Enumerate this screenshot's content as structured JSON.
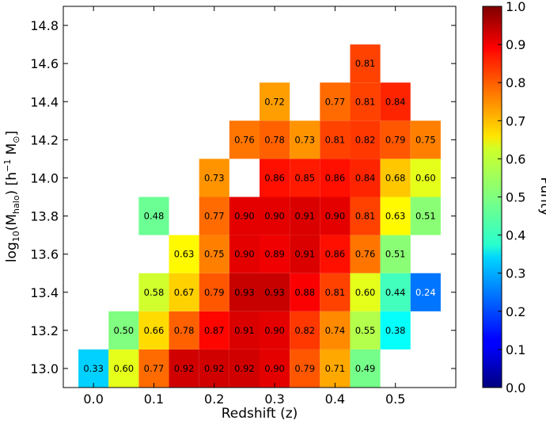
{
  "chart_data": {
    "type": "heatmap",
    "xlabel": "Redshift (z)",
    "ylabel_main": "log",
    "ylabel_sub": "10",
    "ylabel_paren_open": "(M",
    "ylabel_halo": "halo",
    "ylabel_paren_close": ")",
    "ylabel_units_open": " [h",
    "ylabel_exp": "−1",
    "ylabel_msun": " M",
    "ylabel_sun_sub": "⊙",
    "ylabel_units_close": "]",
    "colorbar_label": "Purity",
    "xlim": [
      -0.05,
      0.6
    ],
    "ylim": [
      12.9,
      14.9
    ],
    "x_ticks": [
      "0.0",
      "0.1",
      "0.2",
      "0.3",
      "0.4",
      "0.5"
    ],
    "y_ticks": [
      "13.0",
      "13.2",
      "13.4",
      "13.6",
      "13.8",
      "14.0",
      "14.2",
      "14.4",
      "14.6",
      "14.8"
    ],
    "colorbar_ticks": [
      "0.0",
      "0.1",
      "0.2",
      "0.3",
      "0.4",
      "0.5",
      "0.6",
      "0.7",
      "0.8",
      "0.9",
      "1.0"
    ],
    "colorbar_range": [
      0.0,
      1.0
    ],
    "colormap": "jet",
    "x_bin_centers": [
      0.0,
      0.05,
      0.1,
      0.15,
      0.2,
      0.25,
      0.3,
      0.35,
      0.4,
      0.45,
      0.5,
      0.55
    ],
    "y_bin_centers": [
      13.0,
      13.2,
      13.4,
      13.6,
      13.8,
      14.0,
      14.2,
      14.4,
      14.6
    ],
    "cells": [
      {
        "x": 0.0,
        "y": 13.0,
        "value": 0.33,
        "label": "0.33"
      },
      {
        "x": 0.05,
        "y": 13.0,
        "value": 0.6,
        "label": "0.60"
      },
      {
        "x": 0.1,
        "y": 13.0,
        "value": 0.77,
        "label": "0.77"
      },
      {
        "x": 0.15,
        "y": 13.0,
        "value": 0.92,
        "label": "0.92"
      },
      {
        "x": 0.2,
        "y": 13.0,
        "value": 0.92,
        "label": "0.92"
      },
      {
        "x": 0.25,
        "y": 13.0,
        "value": 0.92,
        "label": "0.92"
      },
      {
        "x": 0.3,
        "y": 13.0,
        "value": 0.9,
        "label": "0.90"
      },
      {
        "x": 0.35,
        "y": 13.0,
        "value": 0.79,
        "label": "0.79"
      },
      {
        "x": 0.4,
        "y": 13.0,
        "value": 0.71,
        "label": "0.71"
      },
      {
        "x": 0.45,
        "y": 13.0,
        "value": 0.49,
        "label": "0.49"
      },
      {
        "x": 0.05,
        "y": 13.2,
        "value": 0.5,
        "label": "0.50"
      },
      {
        "x": 0.1,
        "y": 13.2,
        "value": 0.66,
        "label": "0.66"
      },
      {
        "x": 0.15,
        "y": 13.2,
        "value": 0.78,
        "label": "0.78"
      },
      {
        "x": 0.2,
        "y": 13.2,
        "value": 0.87,
        "label": "0.87"
      },
      {
        "x": 0.25,
        "y": 13.2,
        "value": 0.91,
        "label": "0.91"
      },
      {
        "x": 0.3,
        "y": 13.2,
        "value": 0.9,
        "label": "0.90"
      },
      {
        "x": 0.35,
        "y": 13.2,
        "value": 0.82,
        "label": "0.82"
      },
      {
        "x": 0.4,
        "y": 13.2,
        "value": 0.74,
        "label": "0.74"
      },
      {
        "x": 0.45,
        "y": 13.2,
        "value": 0.55,
        "label": "0.55"
      },
      {
        "x": 0.5,
        "y": 13.2,
        "value": 0.38,
        "label": "0.38"
      },
      {
        "x": 0.1,
        "y": 13.4,
        "value": 0.58,
        "label": "0.58"
      },
      {
        "x": 0.15,
        "y": 13.4,
        "value": 0.67,
        "label": "0.67"
      },
      {
        "x": 0.2,
        "y": 13.4,
        "value": 0.79,
        "label": "0.79"
      },
      {
        "x": 0.25,
        "y": 13.4,
        "value": 0.93,
        "label": "0.93"
      },
      {
        "x": 0.3,
        "y": 13.4,
        "value": 0.93,
        "label": "0.93"
      },
      {
        "x": 0.35,
        "y": 13.4,
        "value": 0.88,
        "label": "0.88"
      },
      {
        "x": 0.4,
        "y": 13.4,
        "value": 0.81,
        "label": "0.81"
      },
      {
        "x": 0.45,
        "y": 13.4,
        "value": 0.6,
        "label": "0.60"
      },
      {
        "x": 0.5,
        "y": 13.4,
        "value": 0.44,
        "label": "0.44"
      },
      {
        "x": 0.55,
        "y": 13.4,
        "value": 0.24,
        "label": "0.24"
      },
      {
        "x": 0.15,
        "y": 13.6,
        "value": 0.63,
        "label": "0.63"
      },
      {
        "x": 0.2,
        "y": 13.6,
        "value": 0.75,
        "label": "0.75"
      },
      {
        "x": 0.25,
        "y": 13.6,
        "value": 0.9,
        "label": "0.90"
      },
      {
        "x": 0.3,
        "y": 13.6,
        "value": 0.89,
        "label": "0.89"
      },
      {
        "x": 0.35,
        "y": 13.6,
        "value": 0.91,
        "label": "0.91"
      },
      {
        "x": 0.4,
        "y": 13.6,
        "value": 0.86,
        "label": "0.86"
      },
      {
        "x": 0.45,
        "y": 13.6,
        "value": 0.76,
        "label": "0.76"
      },
      {
        "x": 0.5,
        "y": 13.6,
        "value": 0.51,
        "label": "0.51"
      },
      {
        "x": 0.1,
        "y": 13.8,
        "value": 0.48,
        "label": "0.48"
      },
      {
        "x": 0.2,
        "y": 13.8,
        "value": 0.77,
        "label": "0.77"
      },
      {
        "x": 0.25,
        "y": 13.8,
        "value": 0.9,
        "label": "0.90"
      },
      {
        "x": 0.3,
        "y": 13.8,
        "value": 0.9,
        "label": "0.90"
      },
      {
        "x": 0.35,
        "y": 13.8,
        "value": 0.91,
        "label": "0.91"
      },
      {
        "x": 0.4,
        "y": 13.8,
        "value": 0.9,
        "label": "0.90"
      },
      {
        "x": 0.45,
        "y": 13.8,
        "value": 0.81,
        "label": "0.81"
      },
      {
        "x": 0.5,
        "y": 13.8,
        "value": 0.63,
        "label": "0.63"
      },
      {
        "x": 0.55,
        "y": 13.8,
        "value": 0.51,
        "label": "0.51"
      },
      {
        "x": 0.2,
        "y": 14.0,
        "value": 0.73,
        "label": "0.73"
      },
      {
        "x": 0.3,
        "y": 14.0,
        "value": 0.86,
        "label": "0.86"
      },
      {
        "x": 0.35,
        "y": 14.0,
        "value": 0.85,
        "label": "0.85"
      },
      {
        "x": 0.4,
        "y": 14.0,
        "value": 0.86,
        "label": "0.86"
      },
      {
        "x": 0.45,
        "y": 14.0,
        "value": 0.84,
        "label": "0.84"
      },
      {
        "x": 0.5,
        "y": 14.0,
        "value": 0.68,
        "label": "0.68"
      },
      {
        "x": 0.55,
        "y": 14.0,
        "value": 0.6,
        "label": "0.60"
      },
      {
        "x": 0.25,
        "y": 14.2,
        "value": 0.76,
        "label": "0.76"
      },
      {
        "x": 0.3,
        "y": 14.2,
        "value": 0.78,
        "label": "0.78"
      },
      {
        "x": 0.35,
        "y": 14.2,
        "value": 0.73,
        "label": "0.73"
      },
      {
        "x": 0.4,
        "y": 14.2,
        "value": 0.81,
        "label": "0.81"
      },
      {
        "x": 0.45,
        "y": 14.2,
        "value": 0.82,
        "label": "0.82"
      },
      {
        "x": 0.5,
        "y": 14.2,
        "value": 0.79,
        "label": "0.79"
      },
      {
        "x": 0.55,
        "y": 14.2,
        "value": 0.75,
        "label": "0.75"
      },
      {
        "x": 0.3,
        "y": 14.4,
        "value": 0.72,
        "label": "0.72"
      },
      {
        "x": 0.4,
        "y": 14.4,
        "value": 0.77,
        "label": "0.77"
      },
      {
        "x": 0.45,
        "y": 14.4,
        "value": 0.81,
        "label": "0.81"
      },
      {
        "x": 0.5,
        "y": 14.4,
        "value": 0.84,
        "label": "0.84"
      },
      {
        "x": 0.45,
        "y": 14.6,
        "value": 0.81,
        "label": "0.81"
      }
    ]
  }
}
